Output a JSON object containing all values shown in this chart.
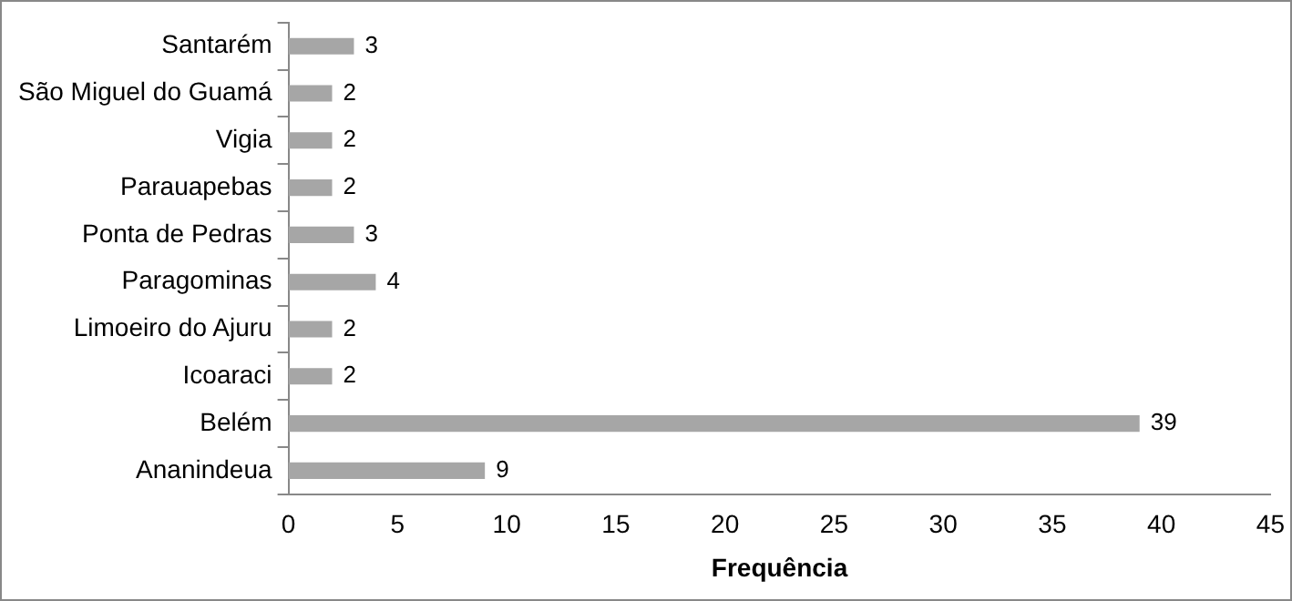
{
  "chart_data": {
    "type": "bar",
    "orientation": "horizontal",
    "xlabel": "Frequência",
    "categories": [
      "Santarém",
      "São Miguel do Guamá",
      "Vigia",
      "Parauapebas",
      "Ponta de Pedras",
      "Paragominas",
      "Limoeiro do Ajuru",
      "Icoaraci",
      "Belém",
      "Ananindeua"
    ],
    "values": [
      3,
      2,
      2,
      2,
      3,
      4,
      2,
      2,
      39,
      9
    ],
    "color": "#a6a6a6",
    "xlim": [
      0,
      45
    ],
    "xticks": [
      0,
      5,
      10,
      15,
      20,
      25,
      30,
      35,
      40,
      45
    ],
    "data_labels": true,
    "grid": false,
    "legend": false
  }
}
